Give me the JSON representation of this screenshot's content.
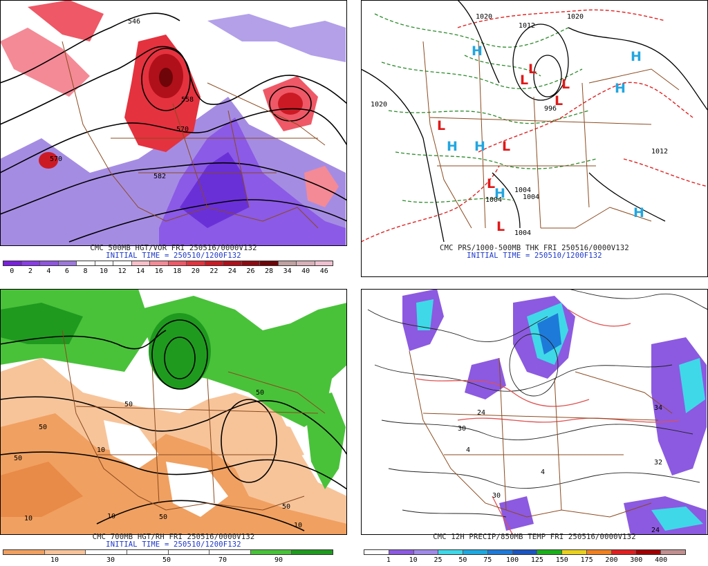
{
  "panels": [
    {
      "caption": "CMC 500MB HGT/VOR FRI 250516/0000V132",
      "initial": "INITIAL TIME = 250510/1200F132",
      "scale_labels": [
        "0",
        "2",
        "4",
        "6",
        "8",
        "10",
        "12",
        "14",
        "16",
        "18",
        "20",
        "22",
        "24",
        "26",
        "28",
        "34",
        "40",
        "46"
      ],
      "scale_colors": [
        "#7a1fe0",
        "#8a3ce8",
        "#8f55e0",
        "#9d78dc",
        "#ffffff",
        "#ffffff",
        "#ffffff",
        "#f9c0c8",
        "#f48a96",
        "#ef5866",
        "#e4323e",
        "#cc1a24",
        "#b0101a",
        "#8e0a12",
        "#6e0508",
        "#c0a0a0",
        "#d8b0b8",
        "#f0c0d0"
      ],
      "contour_labels": [
        "546",
        "558",
        "570",
        "570",
        "582"
      ]
    },
    {
      "caption": "CMC PRS/1000-500MB THK FRI 250516/0000V132",
      "initial": "INITIAL TIME = 250510/1200F132",
      "contour_labels": [
        "1020",
        "1020",
        "1012",
        "1020",
        "996",
        "1012",
        "1004",
        "1004",
        "1004",
        "1004"
      ],
      "highs": [
        "H",
        "H",
        "H",
        "H",
        "H",
        "H",
        "H"
      ],
      "lows": [
        "L",
        "L",
        "L",
        "L",
        "L",
        "L",
        "L",
        "L"
      ]
    },
    {
      "caption": "CMC 700MB HGT/RH FRI 250516/0000V132",
      "initial": "INITIAL TIME = 250510/1200F132",
      "scale_labels": [
        "10",
        "30",
        "50",
        "70",
        "90"
      ],
      "scale_colors": [
        "#f0a060",
        "#f7c49a",
        "#ffffff",
        "#ffffff",
        "#ffffff",
        "#ffffff",
        "#49c23a",
        "#1f9a1f"
      ],
      "contour_labels": [
        "50",
        "50",
        "50",
        "50",
        "10",
        "10",
        "50",
        "50",
        "10",
        "10"
      ]
    },
    {
      "caption": "CMC 12H PRECIP/850MB TEMP FRI 250516/0000V132",
      "initial": "",
      "scale_labels": [
        "1",
        "10",
        "25",
        "50",
        "75",
        "100",
        "125",
        "150",
        "175",
        "200",
        "300",
        "400"
      ],
      "scale_colors": [
        "#ffffff",
        "#8c5ae0",
        "#9f8ae8",
        "#3fd8e8",
        "#1ea8e0",
        "#1e7ad8",
        "#1a54c0",
        "#1ab01a",
        "#e8d020",
        "#f08020",
        "#e02020",
        "#a00000",
        "#c09090"
      ],
      "contour_labels": [
        "34",
        "24",
        "24",
        "32",
        "30",
        "30",
        "4",
        "4"
      ]
    }
  ]
}
